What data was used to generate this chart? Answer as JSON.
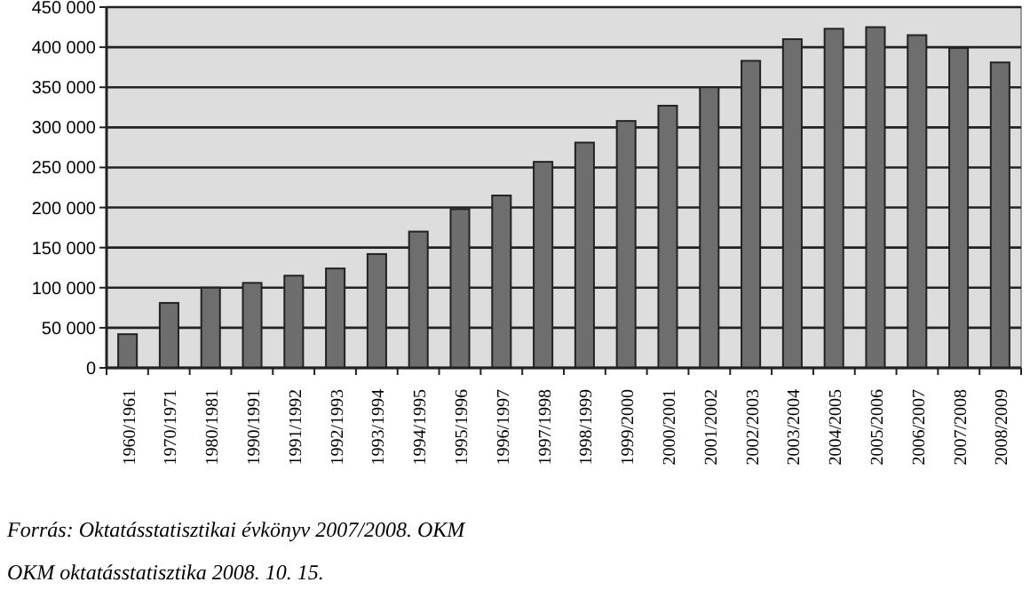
{
  "chart_data": {
    "type": "bar",
    "categories": [
      "1960/1961",
      "1970/1971",
      "1980/1981",
      "1990/1991",
      "1991/1992",
      "1992/1993",
      "1993/1994",
      "1994/1995",
      "1995/1996",
      "1996/1997",
      "1997/1998",
      "1998/1999",
      "1999/2000",
      "2000/2001",
      "2001/2002",
      "2002/2003",
      "2003/2004",
      "2004/2005",
      "2005/2006",
      "2006/2007",
      "2007/2008",
      "2008/2009"
    ],
    "values": [
      42000,
      81000,
      100000,
      106000,
      115000,
      124000,
      142000,
      170000,
      198000,
      215000,
      257000,
      281000,
      308000,
      327000,
      350000,
      383000,
      410000,
      423000,
      425000,
      415000,
      399000,
      381000
    ],
    "color": "#6e6e6e",
    "ylim": [
      0,
      450000
    ],
    "yticks": [
      {
        "value": 0,
        "label": "0"
      },
      {
        "value": 50000,
        "label": "50 000"
      },
      {
        "value": 100000,
        "label": "100 000"
      },
      {
        "value": 150000,
        "label": "150 000"
      },
      {
        "value": 200000,
        "label": "200 000"
      },
      {
        "value": 250000,
        "label": "250 000"
      },
      {
        "value": 300000,
        "label": "300 000"
      },
      {
        "value": 350000,
        "label": "350 000"
      },
      {
        "value": 400000,
        "label": "400 000"
      },
      {
        "value": 450000,
        "label": "450 000"
      }
    ],
    "grid": "y",
    "annotations": [
      "Forrás: Oktatásstatisztikai évkönyv 2007/2008. OKM",
      "OKM oktatásstatisztika 2008. 10. 15."
    ]
  }
}
